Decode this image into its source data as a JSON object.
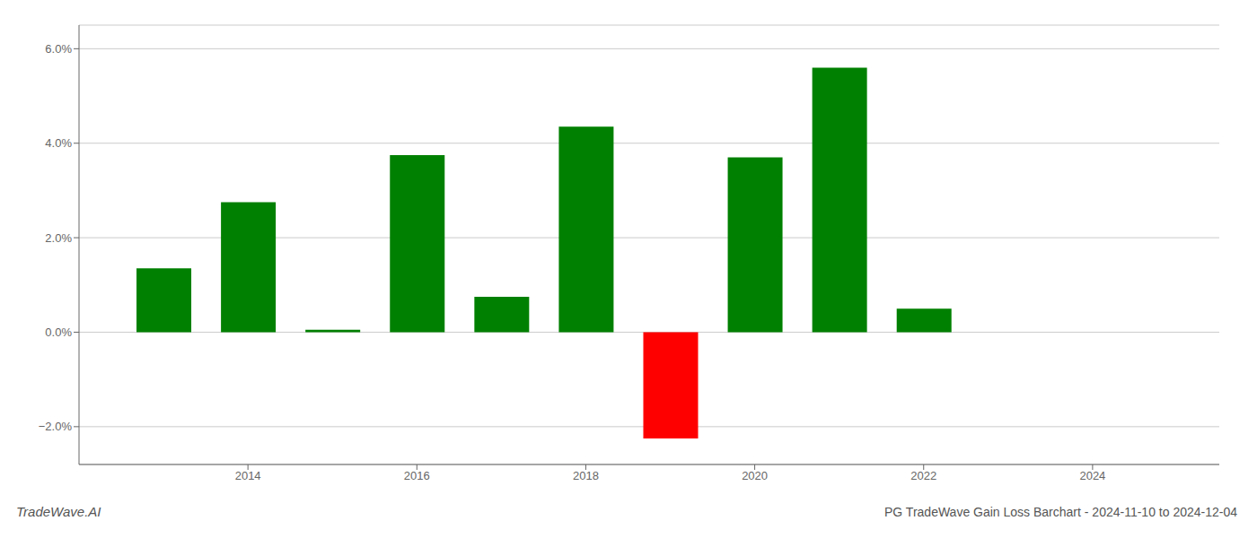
{
  "chart_data": {
    "type": "bar",
    "title": "PG TradeWave Gain Loss Barchart - 2024-11-10 to 2024-12-04",
    "annotations": [
      "TradeWave.AI"
    ],
    "x": [
      2013,
      2014,
      2015,
      2016,
      2017,
      2018,
      2019,
      2020,
      2021,
      2022
    ],
    "values": [
      0.0135,
      0.0275,
      0.0005,
      0.0375,
      0.0075,
      0.0435,
      -0.0225,
      0.037,
      0.056,
      0.005
    ],
    "colors": [
      "#008000",
      "#008000",
      "#008000",
      "#008000",
      "#008000",
      "#008000",
      "#ff0000",
      "#008000",
      "#008000",
      "#008000"
    ],
    "xlim": [
      2012.0,
      2025.5
    ],
    "ylim": [
      -0.028,
      0.065
    ],
    "xticks": [
      2014,
      2016,
      2018,
      2020,
      2022,
      2024
    ],
    "yticks": [
      {
        "value": -0.02,
        "label": "−2.0%"
      },
      {
        "value": 0.0,
        "label": "0.0%"
      },
      {
        "value": 0.02,
        "label": "2.0%"
      },
      {
        "value": 0.04,
        "label": "4.0%"
      },
      {
        "value": 0.06,
        "label": "6.0%"
      }
    ],
    "grid": true
  }
}
